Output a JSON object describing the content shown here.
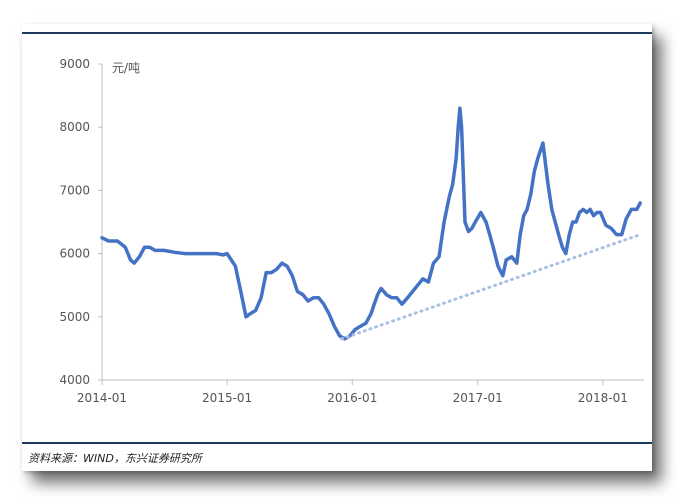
{
  "chart_data": {
    "type": "line",
    "unit_label": "元/吨",
    "source": "资料来源：WIND，东兴证券研究所",
    "ylim": [
      4000,
      9000
    ],
    "yticks": [
      4000,
      5000,
      6000,
      7000,
      8000,
      9000
    ],
    "xlim": [
      "2014-01-01",
      "2018-05-01"
    ],
    "xticks": [
      "2014-01",
      "2015-01",
      "2016-01",
      "2017-01",
      "2018-01"
    ],
    "grid": false,
    "legend": "none",
    "colors": {
      "series": "#4472c4",
      "trend": "#a9bfe3",
      "rule": "#1f3a5f"
    },
    "series": [
      {
        "style": "solid",
        "x": [
          "2014-01-01",
          "2014-01-20",
          "2014-02-15",
          "2014-03-10",
          "2014-03-25",
          "2014-04-05",
          "2014-04-20",
          "2014-05-05",
          "2014-05-20",
          "2014-06-05",
          "2014-07-01",
          "2014-08-01",
          "2014-09-01",
          "2014-10-01",
          "2014-11-01",
          "2014-12-01",
          "2014-12-20",
          "2015-01-01",
          "2015-01-25",
          "2015-02-10",
          "2015-02-25",
          "2015-03-10",
          "2015-03-25",
          "2015-04-10",
          "2015-04-25",
          "2015-05-10",
          "2015-05-25",
          "2015-06-10",
          "2015-06-25",
          "2015-07-10",
          "2015-07-25",
          "2015-08-10",
          "2015-08-25",
          "2015-09-10",
          "2015-09-25",
          "2015-10-10",
          "2015-10-25",
          "2015-11-10",
          "2015-11-25",
          "2015-12-10",
          "2015-12-25",
          "2016-01-10",
          "2016-01-25",
          "2016-02-10",
          "2016-02-25",
          "2016-03-05",
          "2016-03-15",
          "2016-03-25",
          "2016-04-10",
          "2016-04-25",
          "2016-05-10",
          "2016-05-25",
          "2016-06-10",
          "2016-06-25",
          "2016-07-10",
          "2016-07-25",
          "2016-08-10",
          "2016-08-25",
          "2016-09-10",
          "2016-09-25",
          "2016-10-10",
          "2016-10-20",
          "2016-10-30",
          "2016-11-05",
          "2016-11-10",
          "2016-11-15",
          "2016-11-25",
          "2016-12-05",
          "2016-12-15",
          "2016-12-25",
          "2017-01-10",
          "2017-01-25",
          "2017-02-05",
          "2017-02-15",
          "2017-03-01",
          "2017-03-15",
          "2017-03-25",
          "2017-04-10",
          "2017-04-25",
          "2017-05-05",
          "2017-05-15",
          "2017-05-25",
          "2017-06-05",
          "2017-06-15",
          "2017-06-25",
          "2017-07-10",
          "2017-07-25",
          "2017-08-05",
          "2017-08-15",
          "2017-08-25",
          "2017-09-05",
          "2017-09-15",
          "2017-09-25",
          "2017-10-05",
          "2017-10-15",
          "2017-10-25",
          "2017-11-05",
          "2017-11-15",
          "2017-11-25",
          "2017-12-05",
          "2017-12-15",
          "2017-12-25",
          "2018-01-10",
          "2018-01-25",
          "2018-02-10",
          "2018-02-25",
          "2018-03-10",
          "2018-03-25",
          "2018-04-10",
          "2018-04-20"
        ],
        "y": [
          6250,
          6200,
          6200,
          6100,
          5900,
          5850,
          5950,
          6100,
          6100,
          6050,
          6050,
          6020,
          6000,
          6000,
          6000,
          6000,
          5980,
          6000,
          5800,
          5400,
          5000,
          5050,
          5100,
          5300,
          5700,
          5700,
          5750,
          5850,
          5800,
          5650,
          5400,
          5350,
          5250,
          5300,
          5300,
          5200,
          5050,
          4850,
          4700,
          4650,
          4700,
          4800,
          4850,
          4900,
          5050,
          5200,
          5350,
          5450,
          5350,
          5300,
          5300,
          5200,
          5300,
          5400,
          5500,
          5600,
          5550,
          5850,
          5950,
          6500,
          6900,
          7100,
          7500,
          8000,
          8300,
          8000,
          6500,
          6350,
          6400,
          6500,
          6650,
          6500,
          6300,
          6100,
          5800,
          5650,
          5900,
          5950,
          5850,
          6300,
          6600,
          6700,
          6950,
          7300,
          7500,
          7750,
          7100,
          6700,
          6500,
          6300,
          6100,
          6000,
          6300,
          6500,
          6500,
          6650,
          6700,
          6650,
          6700,
          6600,
          6650,
          6650,
          6450,
          6400,
          6300,
          6300,
          6550,
          6700,
          6700,
          6800
        ]
      },
      {
        "style": "dotted",
        "x": [
          "2015-12-01",
          "2018-04-20"
        ],
        "y": [
          4650,
          6300
        ]
      }
    ]
  }
}
